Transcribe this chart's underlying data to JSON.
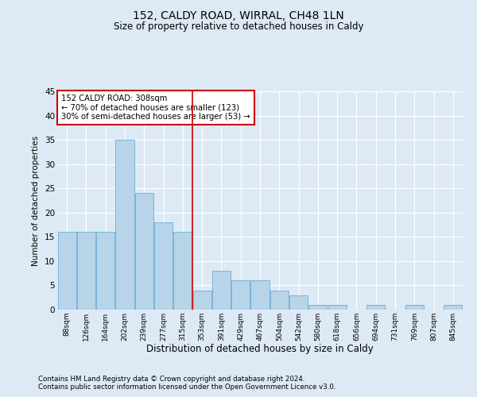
{
  "title_line1": "152, CALDY ROAD, WIRRAL, CH48 1LN",
  "title_line2": "Size of property relative to detached houses in Caldy",
  "xlabel": "Distribution of detached houses by size in Caldy",
  "ylabel": "Number of detached properties",
  "categories": [
    "88sqm",
    "126sqm",
    "164sqm",
    "202sqm",
    "239sqm",
    "277sqm",
    "315sqm",
    "353sqm",
    "391sqm",
    "429sqm",
    "467sqm",
    "504sqm",
    "542sqm",
    "580sqm",
    "618sqm",
    "656sqm",
    "694sqm",
    "731sqm",
    "769sqm",
    "807sqm",
    "845sqm"
  ],
  "values": [
    16,
    16,
    16,
    35,
    24,
    18,
    16,
    4,
    8,
    6,
    6,
    4,
    3,
    1,
    1,
    0,
    1,
    0,
    1,
    0,
    1
  ],
  "bar_color": "#b8d4e8",
  "bar_edge_color": "#6aaed6",
  "bar_linewidth": 0.6,
  "vline_x": 6.5,
  "vline_color": "#cc0000",
  "annotation_line1": "152 CALDY ROAD: 308sqm",
  "annotation_line2": "← 70% of detached houses are smaller (123)",
  "annotation_line3": "30% of semi-detached houses are larger (53) →",
  "annotation_box_color": "#cc0000",
  "bg_color": "#ddeaf5",
  "plot_bg_color": "#ddeaf5",
  "grid_color": "#ffffff",
  "ylim": [
    0,
    45
  ],
  "yticks": [
    0,
    5,
    10,
    15,
    20,
    25,
    30,
    35,
    40,
    45
  ],
  "footer_line1": "Contains HM Land Registry data © Crown copyright and database right 2024.",
  "footer_line2": "Contains public sector information licensed under the Open Government Licence v3.0."
}
